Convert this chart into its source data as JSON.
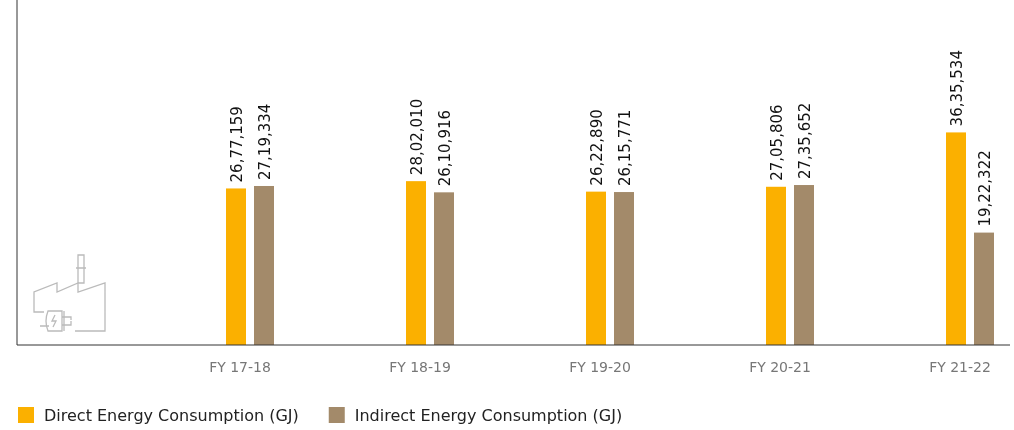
{
  "chart_data": {
    "type": "bar",
    "categories": [
      "FY 17-18",
      "FY 18-19",
      "FY 19-20",
      "FY 20-21",
      "FY 21-22"
    ],
    "series": [
      {
        "name": "Direct Energy Consumption (GJ)",
        "color": "#fbb000",
        "values": [
          2677159,
          2802010,
          2622890,
          2705806,
          3635534
        ],
        "value_labels": [
          "26,77,159",
          "28,02,010",
          "26,22,890",
          "27,05,806",
          "36,35,534"
        ]
      },
      {
        "name": "Indirect Energy Consumption (GJ)",
        "color": "#a38a6a",
        "values": [
          2719334,
          2610916,
          2615771,
          2735652,
          1922322
        ],
        "value_labels": [
          "27,19,334",
          "26,10,916",
          "26,15,771",
          "27,35,652",
          "19,22,322"
        ]
      }
    ],
    "ylim": [
      0,
      5900000
    ],
    "tick_labels": "x",
    "legend": "bottom left"
  }
}
